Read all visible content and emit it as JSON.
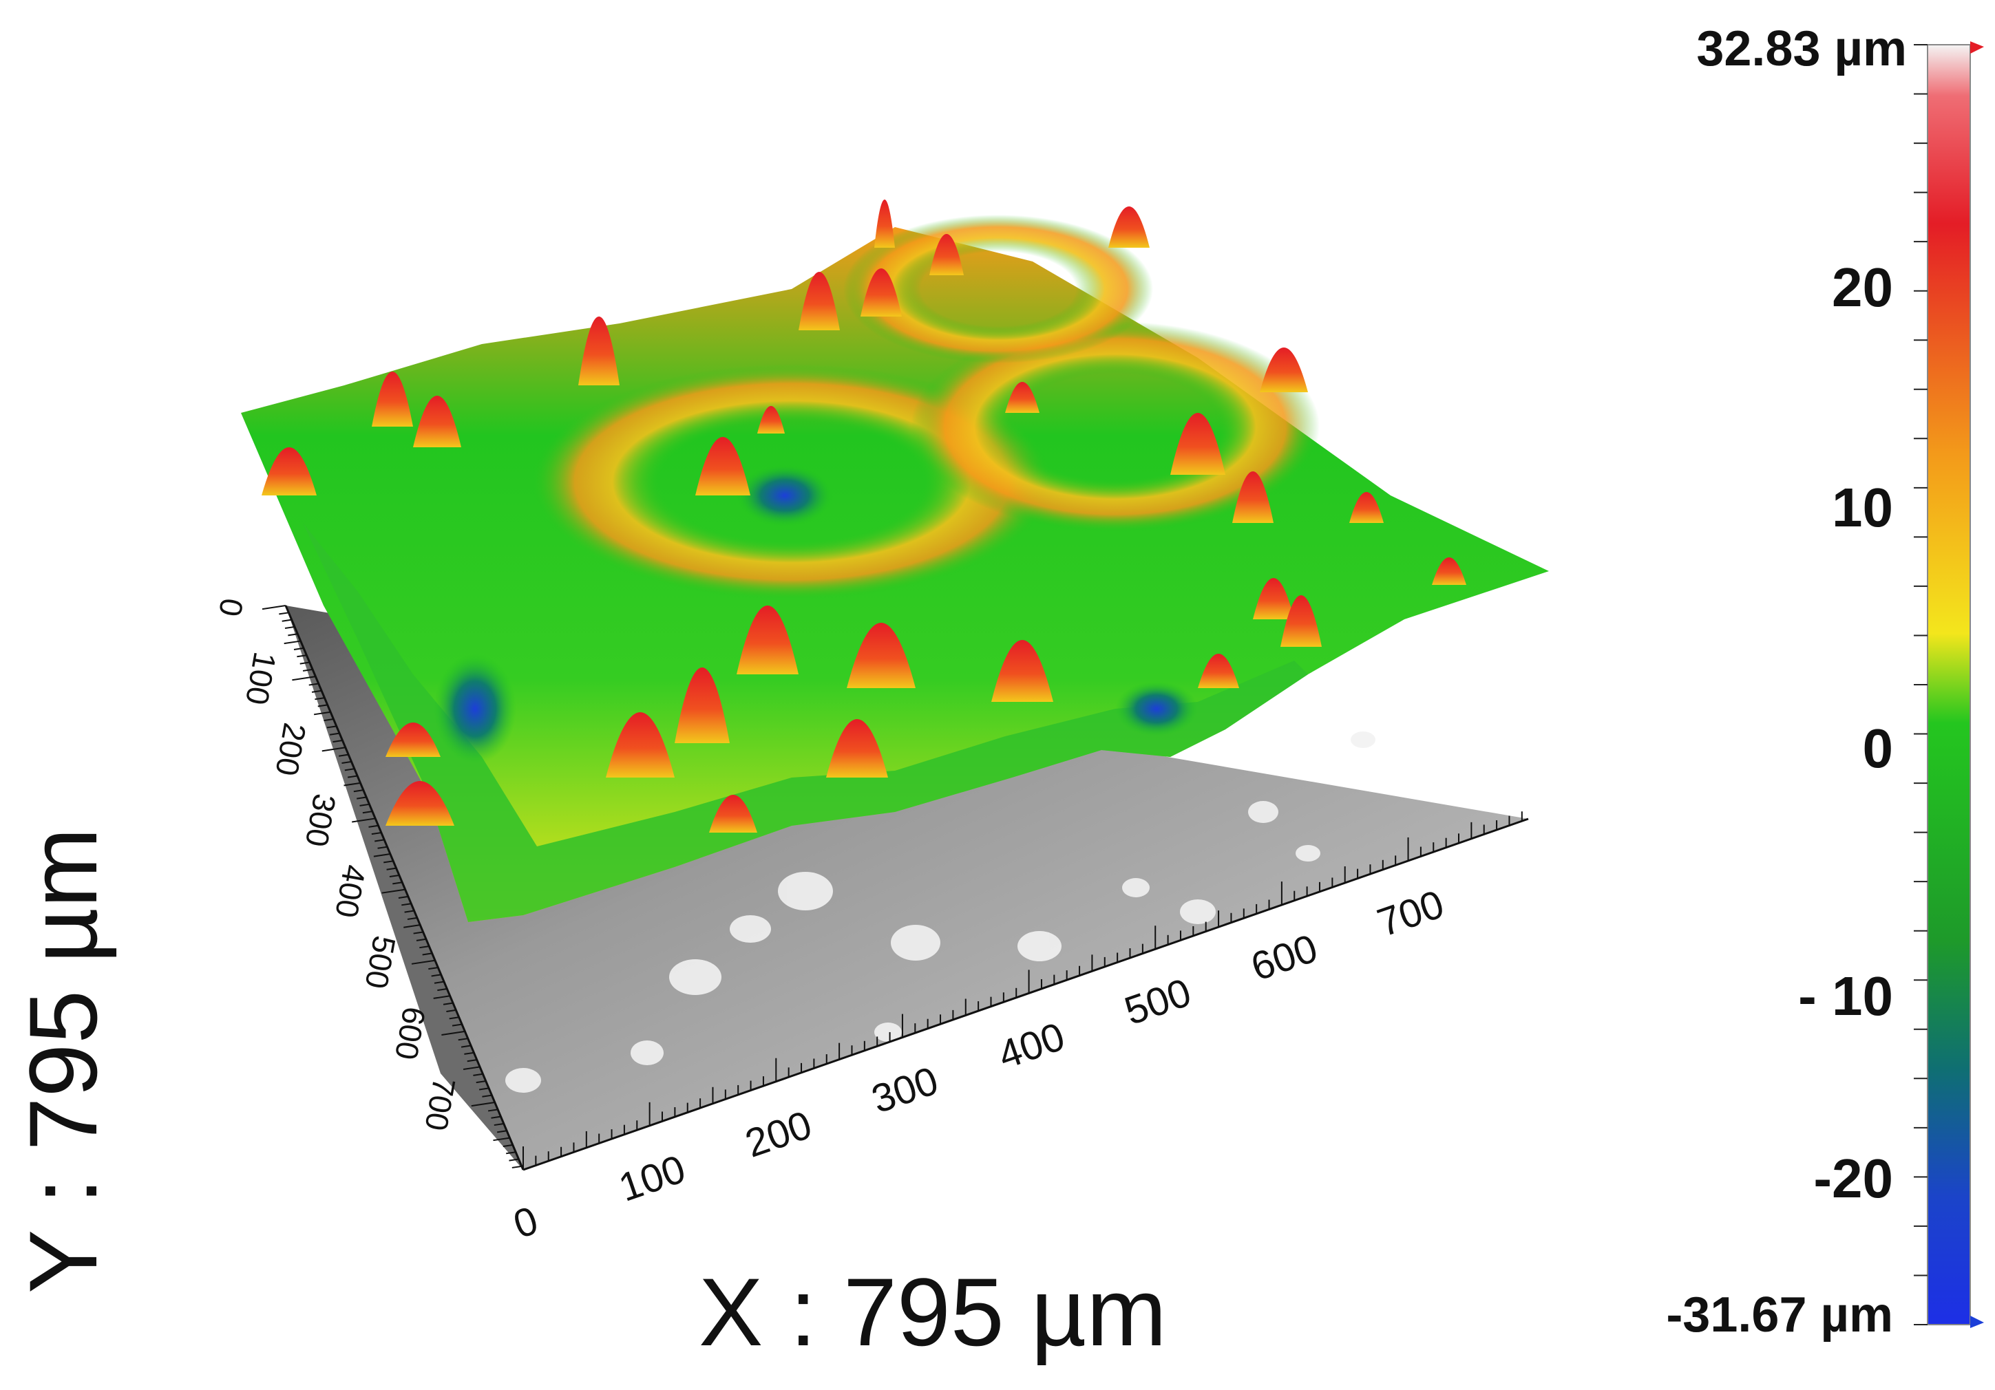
{
  "image": {
    "description_type": "3D surface topography profile with color height scale",
    "x_extent_label": "X : 795 µm",
    "y_extent_label": "Y : 795 µm",
    "x_ticks": [
      "0",
      "100",
      "200",
      "300",
      "400",
      "500",
      "600",
      "700"
    ],
    "y_ticks": [
      "0",
      "100",
      "200",
      "300",
      "400",
      "500",
      "600",
      "700"
    ]
  },
  "colorbar": {
    "max_label": "32.83 µm",
    "min_label": "-31.67 µm",
    "ticks": [
      "20",
      "10",
      "0",
      "- 10",
      "-20"
    ],
    "colors": {
      "top": "#f0f0f0",
      "red": "#e8202a",
      "orange": "#f39a1a",
      "yellow": "#f2e41a",
      "green": "#22c51f",
      "teal": "#0f7c6c",
      "blue": "#1c3fd8"
    }
  }
}
